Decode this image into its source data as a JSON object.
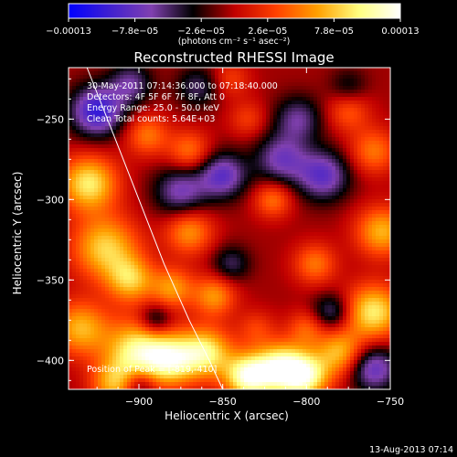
{
  "chart_data": {
    "type": "heatmap",
    "title": "Reconstructed RHESSI Image",
    "xlabel": "Heliocentric X (arcsec)",
    "ylabel": "Heliocentric Y (arcsec)",
    "xlim": [
      -942,
      -750
    ],
    "ylim": [
      -418,
      -218
    ],
    "xticks": [
      -900,
      -850,
      -800,
      -750
    ],
    "xtick_labels": [
      "−900",
      "−850",
      "−800",
      "−750"
    ],
    "yticks": [
      -250,
      -300,
      -350,
      -400
    ],
    "ytick_labels": [
      "−250",
      "−300",
      "−350",
      "−400"
    ],
    "colorbar": {
      "range": [
        -0.00013,
        0.00013
      ],
      "ticks": [
        -0.00013,
        -7.8e-05,
        -2.6e-05,
        2.6e-05,
        7.8e-05,
        0.00013
      ],
      "tick_labels": [
        "−0.00013",
        "−7.8e−05",
        "−2.6e−05",
        "2.6e−05",
        "7.8e−05",
        "0.00013"
      ],
      "units": "(photons cm⁻² s⁻¹ asec⁻²)",
      "colormap": [
        "#0000ff",
        "#4020d0",
        "#8040b0",
        "#000000",
        "#c00000",
        "#ff4000",
        "#ffa000",
        "#ffff80",
        "#ffffff"
      ]
    },
    "annotations": {
      "time": "30-May-2011 07:14:36.000 to 07:18:40.000",
      "detectors": "Detectors: 4F 5F 6F 7F 8F, Att 0",
      "energy": "Energy Range: 25.0 - 50.0 keV",
      "clean": "Clean    Total counts: 5.64E+03",
      "peak": "Position of Peak = [-819,-410]"
    },
    "limb_curve": [
      [
        -931,
        -218
      ],
      [
        -915,
        -260
      ],
      [
        -900,
        -300
      ],
      [
        -885,
        -340
      ],
      [
        -870,
        -375
      ],
      [
        -858,
        -400
      ],
      [
        -850,
        -418
      ]
    ],
    "peak_position": [
      -819,
      -410
    ],
    "grid": false,
    "legend": "none"
  },
  "footer": {
    "timestamp": "13-Aug-2013 07:14"
  }
}
